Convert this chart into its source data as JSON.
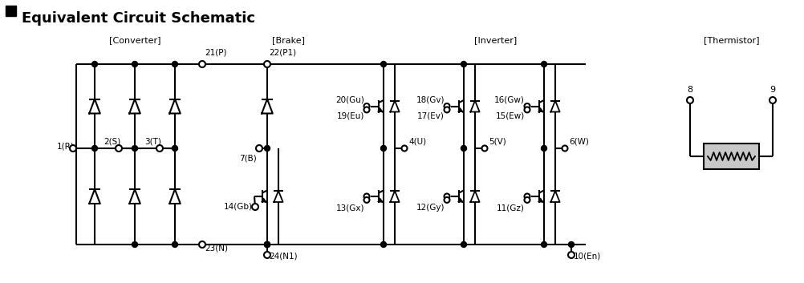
{
  "title": "Equivalent Circuit Schematic",
  "bg_color": "#ffffff",
  "line_color": "#000000",
  "label_color": "#000000",
  "figsize": [
    10.03,
    3.53
  ],
  "dpi": 100,
  "sections": {
    "converter_label": "[Converter]",
    "brake_label": "[Brake]",
    "inverter_label": "[Inverter]",
    "thermistor_label": "[Thermistor]"
  },
  "terminals": {
    "21P": "21(P)",
    "23N": "23(N)",
    "1R": "1(R)",
    "2S": "2(S)",
    "3T": "3(T)",
    "22P1": "22(P1)",
    "7B": "7(B)",
    "14Gb": "14(Gb)",
    "24N1": "24(N1)",
    "20Gu": "20(Gu)",
    "19Eu": "19(Eu)",
    "4U": "4(U)",
    "13Gx": "13(Gx)",
    "18Gv": "18(Gv)",
    "17Ev": "17(Ev)",
    "5V": "5(V)",
    "12Gy": "12(Gy)",
    "16Gw": "16(Gw)",
    "15Ew": "15(Ew)",
    "6W": "6(W)",
    "11Gz": "11(Gz)",
    "10En": "10(En)",
    "8": "8",
    "9": "9"
  }
}
